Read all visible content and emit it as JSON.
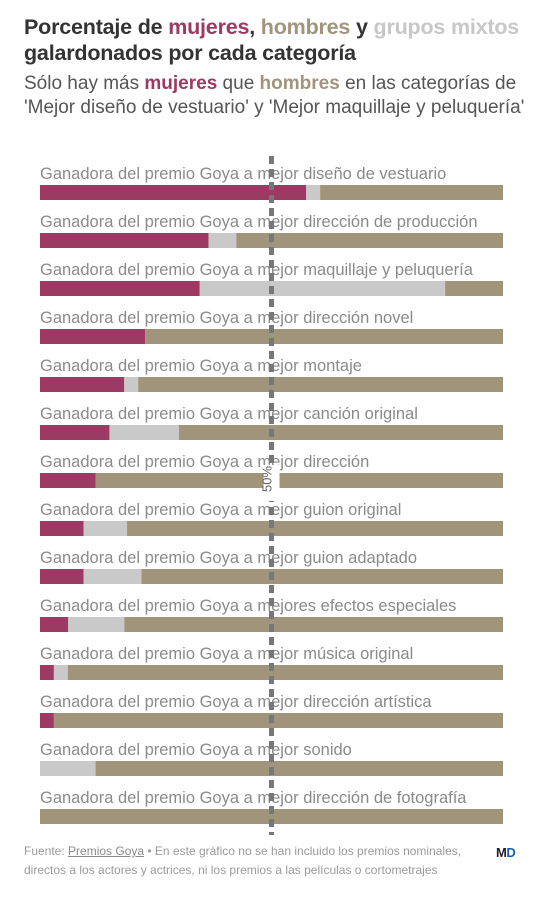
{
  "header": {
    "title_parts": {
      "p1": "Porcentaje de ",
      "women": "mujeres",
      "sep": ", ",
      "men": "hombres",
      "and": " y ",
      "mixed": "grupos mixtos",
      "line2": "galardonados por cada categoría"
    },
    "subtitle_parts": {
      "p1": "Sólo hay más ",
      "women": "mujeres",
      "p2": " que ",
      "men": "hombres",
      "p3": " en las categorías de 'Mejor diseño de vestuario' y 'Mejor maquillaje y peluquería'"
    }
  },
  "colors": {
    "women": "#9c3a64",
    "mixed": "#c9c9c9",
    "men": "#a0947a",
    "reference": "#777777"
  },
  "chart_data": {
    "type": "bar",
    "orientation": "horizontal",
    "stacked": true,
    "normalized": true,
    "xlim": [
      0,
      100
    ],
    "reference_line": {
      "value": 50,
      "label": "50%"
    },
    "series": [
      {
        "name": "mujeres",
        "values": [
          57.5,
          36.4,
          34.5,
          22.7,
          18.2,
          15.0,
          12.0,
          9.4,
          9.4,
          6.1,
          3.0,
          3.0,
          0.0,
          0.0
        ]
      },
      {
        "name": "grupos mixtos",
        "values": [
          3.0,
          6.0,
          53.0,
          0.0,
          3.0,
          15.0,
          0.0,
          9.4,
          12.5,
          12.1,
          3.0,
          0.0,
          12.0,
          0.0
        ]
      },
      {
        "name": "hombres",
        "values": [
          39.5,
          57.6,
          12.5,
          77.3,
          78.8,
          70.0,
          88.0,
          81.2,
          78.1,
          81.8,
          94.0,
          97.0,
          88.0,
          100.0
        ]
      }
    ],
    "categories": [
      "Ganadora del premio Goya a mejor diseño de vestuario",
      "Ganadora del premio Goya a mejor dirección de producción",
      "Ganadora del premio Goya a mejor maquillaje y peluquería",
      "Ganadora del premio Goya a mejor dirección novel",
      "Ganadora del premio Goya a mejor montaje",
      "Ganadora del premio Goya a mejor canción original",
      "Ganadora del premio Goya a mejor dirección",
      "Ganadora del premio Goya a mejor guion original",
      "Ganadora del premio Goya a mejor guion adaptado",
      "Ganadora del premio Goya a mejores efectos especiales",
      "Ganadora del premio Goya a mejor música original",
      "Ganadora del premio Goya a mejor dirección artística",
      "Ganadora del premio Goya a mejor sonido",
      "Ganadora del premio Goya a mejor dirección de fotografía"
    ]
  },
  "footer": {
    "source_prefix": "Fuente: ",
    "source_link": "Premios Goya",
    "note": " • En este gráfico no se han incluido los premios nominales, directos a los actores y actrices, ni los premios a las películas o cortometrajes"
  },
  "logo": {
    "part1": "M",
    "part2": "D"
  }
}
